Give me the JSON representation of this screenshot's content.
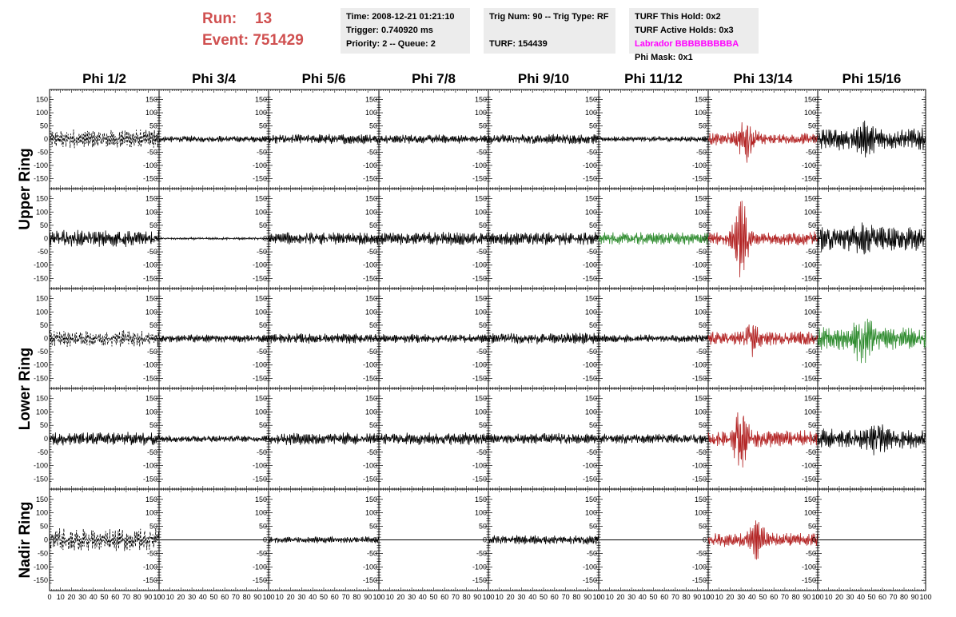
{
  "header": {
    "run_label": "Run:",
    "run_value": "13",
    "event_label": "Event:",
    "event_value": "751429",
    "time": "Time: 2008-12-21 01:21:10",
    "trigger": "Trigger: 0.740920 ms",
    "priority": "Priority: 2 -- Queue: 2",
    "trig_num": "Trig Num: 90 -- Trig Type: RF",
    "turf": "TURF: 154439",
    "turf_this_hold": "TURF This Hold: 0x2",
    "turf_active_holds": "TURF Active Holds: 0x3",
    "labrador": "Labrador BBBBBBBBBA",
    "phi_mask": "Phi Mask: 0x1"
  },
  "colors": {
    "background": "#ffffff",
    "info_box": "#ececec",
    "run_text": "#d05050",
    "labrador": "#ff00ff",
    "trace_black": "#000000",
    "trace_red": "#b22222",
    "trace_green": "#2e8b2e"
  },
  "chart_data": {
    "type": "line",
    "columns": [
      "Phi 1/2",
      "Phi 3/4",
      "Phi 5/6",
      "Phi 7/8",
      "Phi 9/10",
      "Phi 11/12",
      "Phi 13/14",
      "Phi 15/16"
    ],
    "rows": [
      "Upper Ring",
      "Upper Ring",
      "Lower Ring",
      "Lower Ring",
      "Nadir Ring"
    ],
    "row_labels": [
      {
        "text": "Upper Ring",
        "span_rows": [
          0,
          1
        ]
      },
      {
        "text": "Lower Ring",
        "span_rows": [
          2,
          3
        ]
      },
      {
        "text": "Nadir Ring",
        "span_rows": [
          4,
          4
        ]
      }
    ],
    "xlim": [
      0,
      100
    ],
    "ylim": [
      -170,
      170
    ],
    "x_ticks": [
      0,
      10,
      20,
      30,
      40,
      50,
      60,
      70,
      80,
      90,
      100
    ],
    "y_ticks": [
      -150,
      -100,
      -50,
      0,
      50,
      100,
      150
    ],
    "x_tick_labels": [
      "0",
      "10",
      "20",
      "30",
      "40",
      "50",
      "60",
      "70",
      "80",
      "90",
      "100"
    ],
    "y_tick_labels": [
      "-150",
      "-100",
      "-50",
      "0",
      "50",
      "100",
      "150"
    ],
    "panels": [
      [
        {
          "color": "black",
          "style": "dashed",
          "amplitude": 35,
          "burst_center": null
        },
        {
          "color": "black",
          "style": "solid",
          "amplitude": 12,
          "burst_center": null
        },
        {
          "color": "black",
          "style": "solid",
          "amplitude": 18,
          "burst_center": null
        },
        {
          "color": "black",
          "style": "solid",
          "amplitude": 16,
          "burst_center": null
        },
        {
          "color": "black",
          "style": "solid",
          "amplitude": 18,
          "burst_center": null
        },
        {
          "color": "black",
          "style": "solid",
          "amplitude": 10,
          "burst_center": null
        },
        {
          "color": "red",
          "style": "solid",
          "amplitude": 22,
          "burst_center": 35,
          "burst_amplitude": 100
        },
        {
          "color": "black",
          "style": "solid",
          "amplitude": 40,
          "burst_center": 45,
          "burst_amplitude": 70
        }
      ],
      [
        {
          "color": "black",
          "style": "solid",
          "amplitude": 30,
          "burst_center": null
        },
        {
          "color": "black",
          "style": "solid",
          "amplitude": 4,
          "burst_center": null
        },
        {
          "color": "black",
          "style": "solid",
          "amplitude": 22,
          "burst_center": null
        },
        {
          "color": "black",
          "style": "solid",
          "amplitude": 24,
          "burst_center": null
        },
        {
          "color": "black",
          "style": "solid",
          "amplitude": 24,
          "burst_center": null
        },
        {
          "color": "green",
          "style": "solid",
          "amplitude": 22,
          "burst_center": null
        },
        {
          "color": "red",
          "style": "solid",
          "amplitude": 25,
          "burst_center": 30,
          "burst_amplitude": 150
        },
        {
          "color": "black",
          "style": "solid",
          "amplitude": 45,
          "burst_center": 45,
          "burst_amplitude": 70
        }
      ],
      [
        {
          "color": "black",
          "style": "dashed",
          "amplitude": 30,
          "burst_center": null
        },
        {
          "color": "black",
          "style": "solid",
          "amplitude": 14,
          "burst_center": null
        },
        {
          "color": "black",
          "style": "solid",
          "amplitude": 18,
          "burst_center": null
        },
        {
          "color": "black",
          "style": "solid",
          "amplitude": 16,
          "burst_center": null
        },
        {
          "color": "black",
          "style": "solid",
          "amplitude": 20,
          "burst_center": null
        },
        {
          "color": "black",
          "style": "solid",
          "amplitude": 14,
          "burst_center": null
        },
        {
          "color": "red",
          "style": "solid",
          "amplitude": 25,
          "burst_center": 40,
          "burst_amplitude": 70
        },
        {
          "color": "green",
          "style": "solid",
          "amplitude": 40,
          "burst_center": 42,
          "burst_amplitude": 130
        }
      ],
      [
        {
          "color": "black",
          "style": "solid",
          "amplitude": 24,
          "burst_center": null
        },
        {
          "color": "black",
          "style": "solid",
          "amplitude": 12,
          "burst_center": null
        },
        {
          "color": "black",
          "style": "solid",
          "amplitude": 22,
          "burst_center": null
        },
        {
          "color": "black",
          "style": "solid",
          "amplitude": 22,
          "burst_center": null
        },
        {
          "color": "black",
          "style": "solid",
          "amplitude": 20,
          "burst_center": null
        },
        {
          "color": "black",
          "style": "solid",
          "amplitude": 18,
          "burst_center": null
        },
        {
          "color": "red",
          "style": "solid",
          "amplitude": 30,
          "burst_center": 30,
          "burst_amplitude": 110
        },
        {
          "color": "black",
          "style": "solid",
          "amplitude": 35,
          "burst_center": 55,
          "burst_amplitude": 70
        }
      ],
      [
        {
          "color": "black",
          "style": "dashed",
          "amplitude": 40,
          "burst_center": null
        },
        {
          "color": "black",
          "style": "flat",
          "amplitude": 0,
          "burst_center": null
        },
        {
          "color": "black",
          "style": "solid",
          "amplitude": 12,
          "burst_center": null
        },
        {
          "color": "black",
          "style": "flat",
          "amplitude": 0,
          "burst_center": null
        },
        {
          "color": "black",
          "style": "solid",
          "amplitude": 16,
          "burst_center": null
        },
        {
          "color": "black",
          "style": "flat",
          "amplitude": 0,
          "burst_center": null
        },
        {
          "color": "red",
          "style": "solid",
          "amplitude": 25,
          "burst_center": 45,
          "burst_amplitude": 80
        },
        {
          "color": "black",
          "style": "flat",
          "amplitude": 0,
          "burst_center": null
        }
      ]
    ]
  }
}
